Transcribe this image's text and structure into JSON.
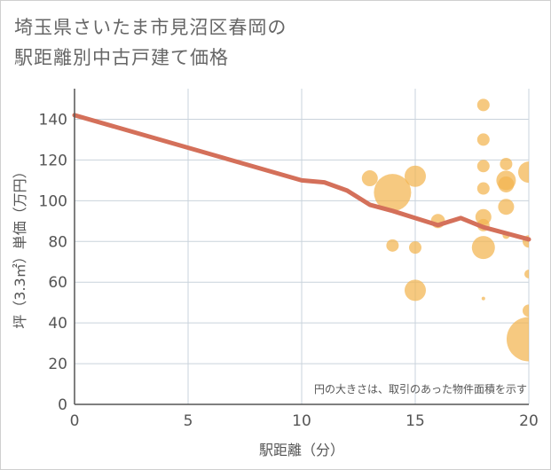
{
  "chart_data": {
    "type": "scatter",
    "title": "埼玉県さいたま市見沼区春岡の駅距離別中古戸建て価格",
    "title_lines": [
      "埼玉県さいたま市見沼区春岡の",
      "駅距離別中古戸建て価格"
    ],
    "xlabel": "駅距離（分）",
    "ylabel": "坪（3.3㎡）単価（万円）",
    "xlim": [
      0,
      20
    ],
    "ylim": [
      0,
      155
    ],
    "x_ticks": [
      0,
      5,
      10,
      15,
      20
    ],
    "y_ticks": [
      0,
      20,
      40,
      60,
      80,
      100,
      120,
      140
    ],
    "note": "円の大きさは、取引のあった物件面積を示す",
    "colors": {
      "bubble": "#f2b44f",
      "line": "#d4705a",
      "grid": "#c9d3dc"
    },
    "bubbles": [
      {
        "x": 13,
        "y": 111,
        "r": 9
      },
      {
        "x": 14,
        "y": 104,
        "r": 21
      },
      {
        "x": 14,
        "y": 78,
        "r": 7
      },
      {
        "x": 15,
        "y": 112,
        "r": 12
      },
      {
        "x": 15,
        "y": 77,
        "r": 7
      },
      {
        "x": 15,
        "y": 56,
        "r": 12
      },
      {
        "x": 16,
        "y": 90,
        "r": 8
      },
      {
        "x": 18,
        "y": 147,
        "r": 7
      },
      {
        "x": 18,
        "y": 130,
        "r": 7
      },
      {
        "x": 18,
        "y": 117,
        "r": 7
      },
      {
        "x": 18,
        "y": 106,
        "r": 7
      },
      {
        "x": 18,
        "y": 92,
        "r": 9
      },
      {
        "x": 18,
        "y": 88,
        "r": 7
      },
      {
        "x": 18,
        "y": 77,
        "r": 13
      },
      {
        "x": 18,
        "y": 52,
        "r": 2
      },
      {
        "x": 19,
        "y": 118,
        "r": 7
      },
      {
        "x": 19,
        "y": 110,
        "r": 11
      },
      {
        "x": 19,
        "y": 108,
        "r": 9
      },
      {
        "x": 19,
        "y": 97,
        "r": 9
      },
      {
        "x": 19,
        "y": 83,
        "r": 4
      },
      {
        "x": 20,
        "y": 114,
        "r": 12
      },
      {
        "x": 20,
        "y": 80,
        "r": 7
      },
      {
        "x": 20,
        "y": 64,
        "r": 5
      },
      {
        "x": 20,
        "y": 46,
        "r": 7
      },
      {
        "x": 20,
        "y": 32,
        "r": 25
      }
    ],
    "trend_line": [
      {
        "x": 0,
        "y": 142
      },
      {
        "x": 10,
        "y": 110
      },
      {
        "x": 11,
        "y": 109
      },
      {
        "x": 12,
        "y": 105
      },
      {
        "x": 13,
        "y": 98
      },
      {
        "x": 14,
        "y": 95
      },
      {
        "x": 15,
        "y": 91.5
      },
      {
        "x": 16,
        "y": 88
      },
      {
        "x": 17,
        "y": 91.5
      },
      {
        "x": 18,
        "y": 87
      },
      {
        "x": 19,
        "y": 84
      },
      {
        "x": 20,
        "y": 81
      }
    ]
  }
}
